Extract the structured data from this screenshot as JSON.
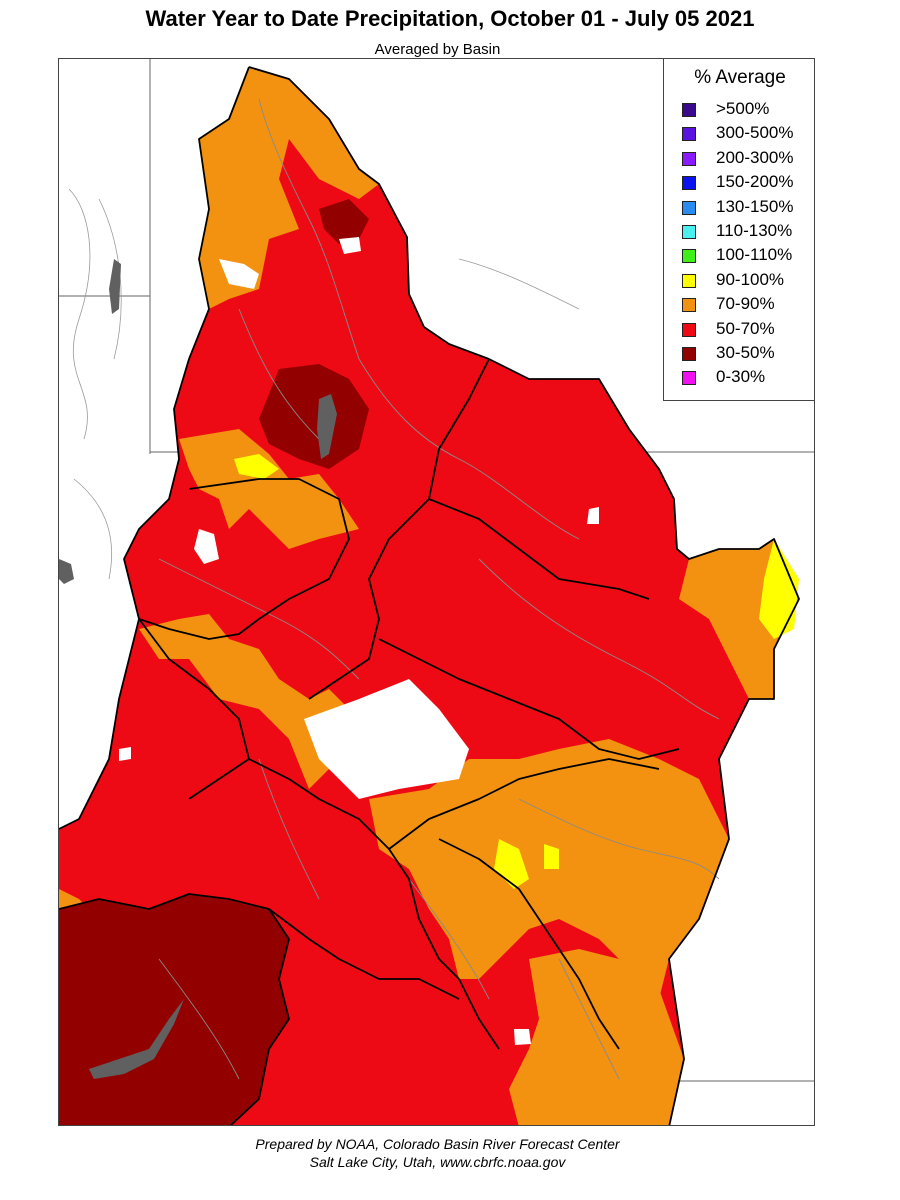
{
  "header": {
    "title": "Water Year to Date Precipitation, October 01  - July 05 2021",
    "subtitle": "Averaged by Basin"
  },
  "legend": {
    "title": "% Average",
    "items": [
      {
        "label": ">500%",
        "color": "#3b0a8c"
      },
      {
        "label": "300-500%",
        "color": "#5a12e0"
      },
      {
        "label": "200-300%",
        "color": "#8a1aff"
      },
      {
        "label": "150-200%",
        "color": "#0a12f0"
      },
      {
        "label": "130-150%",
        "color": "#2a8cf0"
      },
      {
        "label": "110-130%",
        "color": "#4af0f0"
      },
      {
        "label": "100-110%",
        "color": "#3ef018"
      },
      {
        "label": "90-100%",
        "color": "#ffff00"
      },
      {
        "label": "70-90%",
        "color": "#f29210"
      },
      {
        "label": "50-70%",
        "color": "#ee0a14"
      },
      {
        "label": "30-50%",
        "color": "#920000"
      },
      {
        "label": "0-30%",
        "color": "#f010f0"
      }
    ]
  },
  "credits": {
    "line1": "Prepared by NOAA, Colorado Basin River Forecast Center",
    "line2": "Salt Lake City, Utah, www.cbrfc.noaa.gov"
  }
}
